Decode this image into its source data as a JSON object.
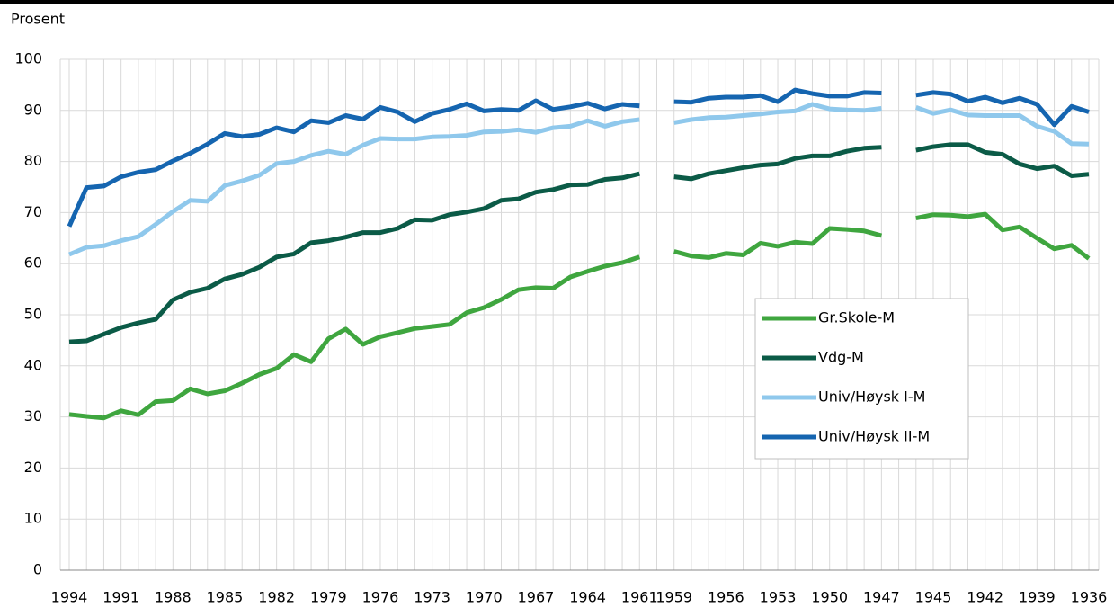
{
  "chart_data": {
    "type": "line",
    "y_label": "Prosent",
    "categories": [
      "1994",
      null,
      null,
      "1991",
      null,
      null,
      "1988",
      null,
      null,
      "1985",
      null,
      null,
      "1982",
      null,
      null,
      "1979",
      null,
      null,
      "1976",
      null,
      null,
      "1973",
      null,
      null,
      "1970",
      null,
      null,
      "1967",
      null,
      null,
      "1964",
      null,
      null,
      "1961",
      null,
      "1959",
      null,
      null,
      "1956",
      null,
      null,
      "1953",
      null,
      null,
      "1950",
      null,
      null,
      "1947",
      null,
      null,
      "1945",
      null,
      null,
      "1942",
      null,
      null,
      "1939",
      null,
      null,
      "1936"
    ],
    "series": [
      {
        "name": "Gr.Skole-M",
        "color": "#3fa63f",
        "values": [
          30.5,
          30.1,
          29.8,
          31.2,
          30.4,
          33.0,
          33.2,
          35.5,
          34.5,
          35.1,
          36.6,
          38.3,
          39.5,
          42.2,
          40.8,
          45.3,
          47.2,
          44.2,
          45.7,
          46.5,
          47.3,
          47.7,
          48.1,
          50.4,
          51.4,
          53.0,
          54.9,
          55.3,
          55.2,
          57.4,
          58.5,
          59.5,
          60.2,
          61.3,
          null,
          62.4,
          61.5,
          61.2,
          62.0,
          61.7,
          64.0,
          63.4,
          64.2,
          63.9,
          66.9,
          66.7,
          66.4,
          65.5,
          null,
          68.9,
          69.6,
          69.5,
          69.2,
          69.7,
          66.6,
          67.2,
          65.0,
          62.9,
          63.6,
          61.0
        ]
      },
      {
        "name": "Vdg-M",
        "color": "#0b5b47",
        "values": [
          44.7,
          44.9,
          46.2,
          47.5,
          48.4,
          49.1,
          52.9,
          54.4,
          55.2,
          57.0,
          57.9,
          59.3,
          61.3,
          61.9,
          64.1,
          64.5,
          65.2,
          66.1,
          66.1,
          66.9,
          68.6,
          68.5,
          69.6,
          70.1,
          70.8,
          72.4,
          72.7,
          74.0,
          74.5,
          75.4,
          75.5,
          76.5,
          76.8,
          77.6,
          null,
          77.0,
          76.6,
          77.6,
          78.2,
          78.8,
          79.3,
          79.5,
          80.6,
          81.1,
          81.1,
          82.0,
          82.6,
          82.8,
          null,
          82.2,
          82.9,
          83.3,
          83.3,
          81.8,
          81.4,
          79.5,
          78.6,
          79.1,
          77.2,
          77.5
        ]
      },
      {
        "name": "Univ/Høysk I-M",
        "color": "#8fc8ec",
        "values": [
          61.8,
          63.2,
          63.5,
          64.5,
          65.3,
          67.7,
          70.2,
          72.4,
          72.2,
          75.3,
          76.2,
          77.3,
          79.6,
          80.0,
          81.2,
          82.0,
          81.4,
          83.2,
          84.5,
          84.4,
          84.4,
          84.8,
          84.9,
          85.1,
          85.8,
          85.9,
          86.2,
          85.7,
          86.6,
          86.9,
          88.0,
          86.9,
          87.8,
          88.2,
          null,
          87.6,
          88.2,
          88.6,
          88.7,
          89.0,
          89.3,
          89.7,
          89.9,
          91.2,
          90.3,
          90.1,
          90.0,
          90.4,
          null,
          90.6,
          89.4,
          90.1,
          89.1,
          89.0,
          89.0,
          89.0,
          86.9,
          85.9,
          83.5,
          83.4
        ]
      },
      {
        "name": "Univ/Høysk II-M",
        "color": "#1565b0",
        "values": [
          67.3,
          74.9,
          75.2,
          77.0,
          77.9,
          78.4,
          80.1,
          81.6,
          83.4,
          85.5,
          84.9,
          85.3,
          86.6,
          85.8,
          88.0,
          87.6,
          89.0,
          88.3,
          90.6,
          89.7,
          87.8,
          89.4,
          90.2,
          91.3,
          89.9,
          90.2,
          90.0,
          91.9,
          90.2,
          90.7,
          91.4,
          90.3,
          91.2,
          90.9,
          null,
          91.7,
          91.6,
          92.4,
          92.6,
          92.6,
          92.9,
          91.7,
          94.0,
          93.3,
          92.8,
          92.8,
          93.5,
          93.4,
          null,
          93.0,
          93.5,
          93.2,
          91.8,
          92.6,
          91.5,
          92.4,
          91.2,
          87.2,
          90.8,
          89.7
        ]
      }
    ],
    "ylim": [
      0,
      100
    ],
    "yticks": [
      0,
      10,
      20,
      30,
      40,
      50,
      60,
      70,
      80,
      90,
      100
    ],
    "grid": true
  }
}
